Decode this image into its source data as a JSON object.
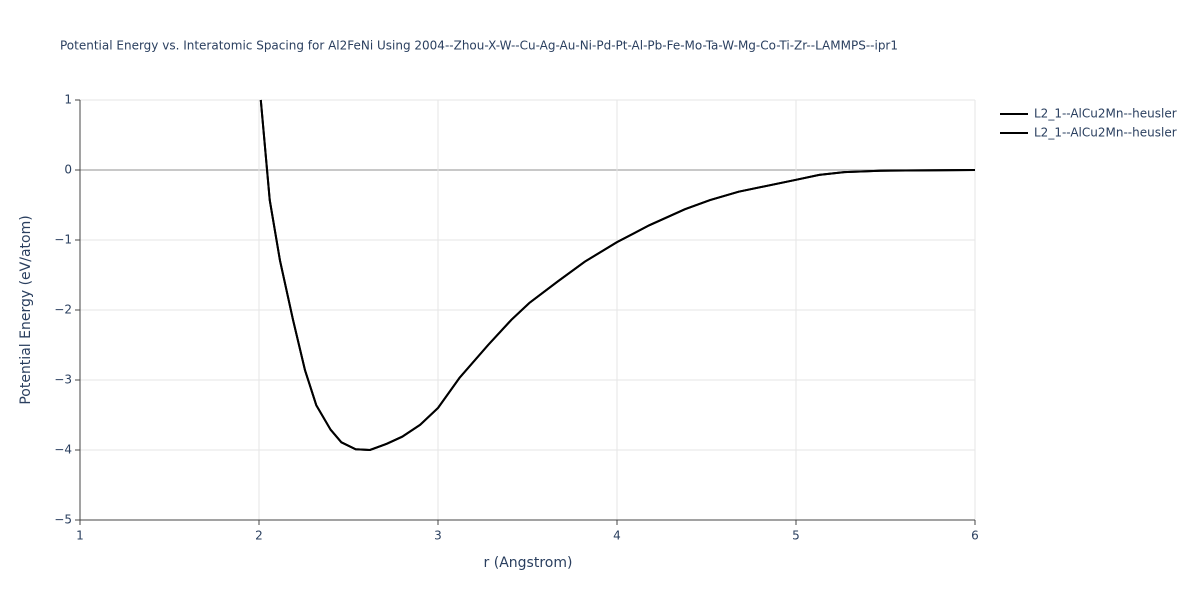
{
  "chart_data": {
    "type": "line",
    "title": "Potential Energy vs. Interatomic Spacing for Al2FeNi Using 2004--Zhou-X-W--Cu-Ag-Au-Ni-Pd-Pt-Al-Pb-Fe-Mo-Ta-W-Mg-Co-Ti-Zr--LAMMPS--ipr1",
    "x_label": "r (Angstrom)",
    "y_label": "Potential Energy (eV/atom)",
    "x": [
      2.01,
      2.06,
      2.117,
      2.19,
      2.257,
      2.32,
      2.4,
      2.46,
      2.54,
      2.62,
      2.715,
      2.8,
      2.9,
      3.0,
      3.12,
      3.28,
      3.41,
      3.51,
      3.67,
      3.82,
      4.0,
      4.18,
      4.38,
      4.52,
      4.68,
      5.0,
      5.13,
      5.27,
      5.47,
      6.0
    ],
    "series": [
      {
        "name": "L2_1--AlCu2Mn--heusler",
        "color": "#000000",
        "values": [
          1,
          -0.43,
          -1.29,
          -2.14,
          -2.86,
          -3.36,
          -3.71,
          -3.89,
          -3.99,
          -4.0,
          -3.91,
          -3.81,
          -3.64,
          -3.4,
          -2.97,
          -2.5,
          -2.14,
          -1.9,
          -1.59,
          -1.31,
          -1.03,
          -0.79,
          -0.56,
          -0.43,
          -0.31,
          -0.14,
          -0.07,
          -0.03,
          -0.01,
          0
        ]
      },
      {
        "name": "L2_1--AlCu2Mn--heusler",
        "color": "#000000",
        "values": [
          1,
          -0.43,
          -1.29,
          -2.14,
          -2.86,
          -3.36,
          -3.71,
          -3.89,
          -3.99,
          -4.0,
          -3.91,
          -3.81,
          -3.64,
          -3.4,
          -2.97,
          -2.5,
          -2.14,
          -1.9,
          -1.59,
          -1.31,
          -1.03,
          -0.79,
          -0.56,
          -0.43,
          -0.31,
          -0.14,
          -0.07,
          -0.03,
          -0.01,
          0
        ]
      }
    ],
    "xlim": [
      1,
      6
    ],
    "xticks": [
      1,
      2,
      3,
      4,
      5,
      6
    ],
    "ylim": [
      -5,
      1
    ],
    "yticks": [
      {
        "value": -5,
        "label": "−5"
      },
      {
        "value": -4,
        "label": "−4"
      },
      {
        "value": -3,
        "label": "−3"
      },
      {
        "value": -2,
        "label": "−2"
      },
      {
        "value": -1,
        "label": "−1"
      },
      0,
      1
    ],
    "grid": true,
    "legend": "top-right"
  }
}
